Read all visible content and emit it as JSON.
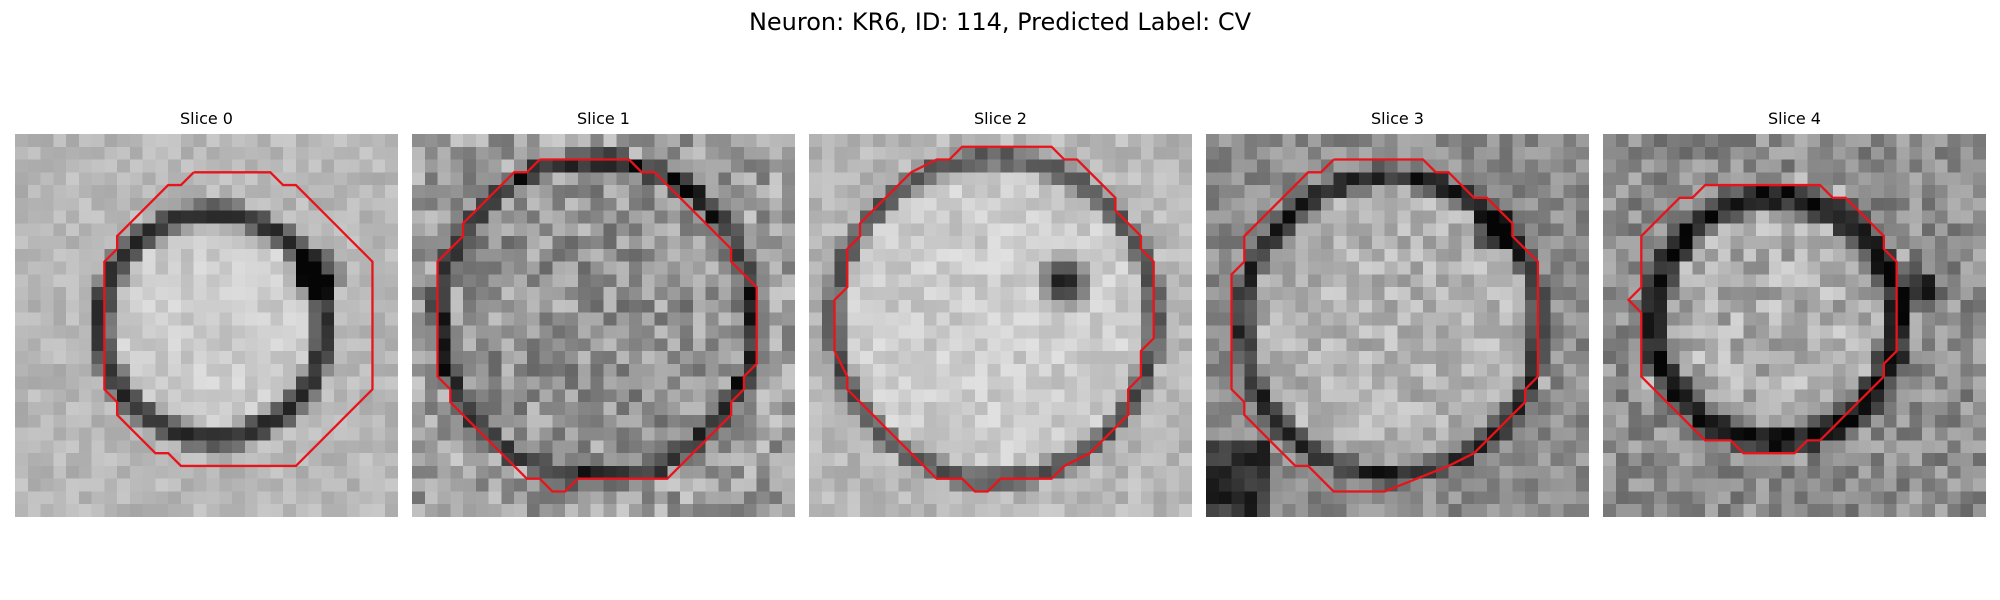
{
  "figure": {
    "title": "Neuron: KR6, ID: 114, Predicted Label: CV"
  },
  "slices": [
    {
      "label": "Slice 0"
    },
    {
      "label": "Slice 1"
    },
    {
      "label": "Slice 2"
    },
    {
      "label": "Slice 3"
    },
    {
      "label": "Slice 4"
    }
  ],
  "style": {
    "contour_color": "#e8141b",
    "colormap": "grayscale"
  }
}
